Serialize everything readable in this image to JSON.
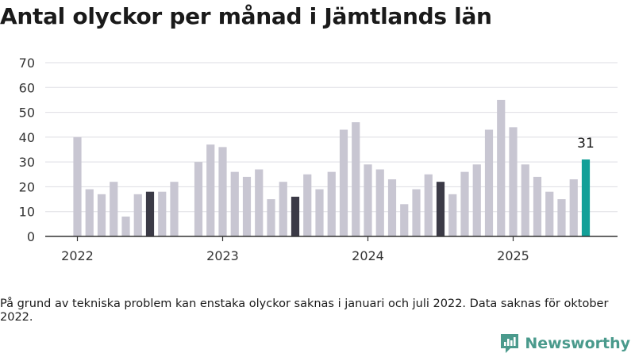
{
  "title": "Antal olyckor per månad i Jämtlands län",
  "footnote": "På grund av tekniska problem kan enstaka olyckor saknas i januari och juli 2022. Data saknas för oktober 2022.",
  "brand": {
    "name": "Newsworthy",
    "icon": "bar-chart-logo-icon",
    "color": "#4a9a8c"
  },
  "colors": {
    "default_bar": "#c8c6d2",
    "july_bar": "#3b3a46",
    "latest_bar": "#13a098"
  },
  "chart_data": {
    "type": "bar",
    "ylim": [
      0,
      70
    ],
    "yticks": [
      0,
      10,
      20,
      30,
      40,
      50,
      60,
      70
    ],
    "xticks": [
      "2022",
      "2023",
      "2024",
      "2025"
    ],
    "grid": true,
    "series": [
      {
        "values": [
          40,
          19,
          17,
          22,
          8,
          17,
          18,
          18,
          22,
          null,
          30,
          37,
          36,
          26,
          24,
          27,
          15,
          22,
          16,
          25,
          19,
          26,
          43,
          46,
          29,
          27,
          23,
          13,
          19,
          25,
          22,
          17,
          26,
          29,
          43,
          55,
          44,
          29,
          24,
          18,
          15,
          23,
          31
        ]
      }
    ],
    "highlight": {
      "dark_months": [
        "2022-07",
        "2023-07",
        "2024-07"
      ],
      "latest": "2025-07"
    },
    "annotation": {
      "label": "31"
    }
  }
}
